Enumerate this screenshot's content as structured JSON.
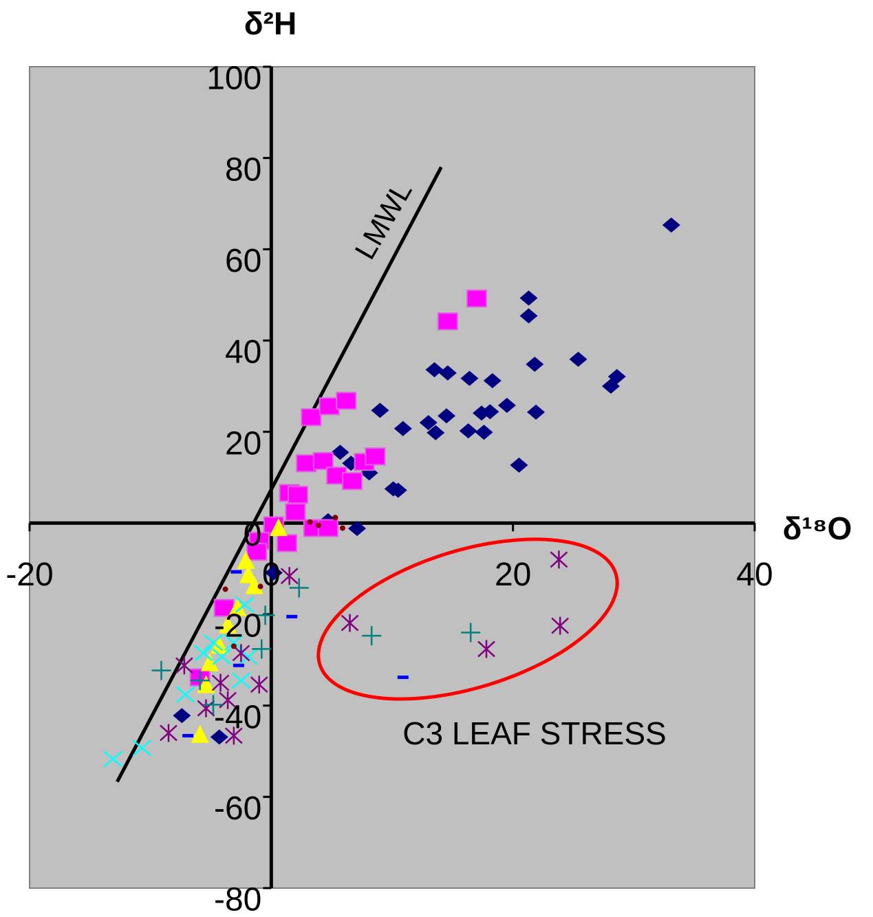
{
  "chart_data": {
    "type": "scatter",
    "xlabel": "δ¹⁸O",
    "ylabel": "δ²H",
    "xlim": [
      -20,
      40
    ],
    "ylim": [
      -80,
      100
    ],
    "xticks": [
      -20,
      0,
      20,
      40
    ],
    "yticks": [
      -80,
      -60,
      -40,
      -20,
      0,
      20,
      40,
      60,
      80,
      100
    ],
    "annotations": [
      "C3 LEAF STRESS"
    ],
    "lmwl": {
      "label": "LMWL",
      "x": [
        -12.75,
        14.06
      ],
      "y": [
        -56.7,
        78.0
      ]
    },
    "series": [
      {
        "color": "#000080",
        "marker": "diamond",
        "x": [
          33.1,
          21.3,
          21.3,
          13.5,
          14.6,
          16.4,
          18.3,
          21.8,
          25.4,
          28.6,
          28.1,
          9.0,
          10.9,
          13.0,
          14.5,
          13.6,
          16.3,
          17.6,
          17.4,
          18.1,
          19.5,
          21.9,
          20.5,
          5.7,
          6.6,
          8.1,
          10.1,
          10.5,
          4.7,
          7.1,
          0.2,
          -7.4,
          -4.3
        ],
        "y": [
          65.3,
          49.3,
          45.4,
          33.6,
          32.9,
          31.7,
          31.2,
          34.8,
          35.9,
          32.1,
          30.0,
          24.7,
          20.7,
          22.0,
          23.5,
          19.8,
          20.2,
          19.9,
          24.1,
          24.4,
          25.8,
          24.3,
          12.7,
          15.5,
          13.1,
          11.0,
          7.5,
          7.2,
          0.5,
          -1.2,
          -10.9,
          -42.2,
          -46.9
        ]
      },
      {
        "color": "#ff00ff",
        "marker": "square",
        "x": [
          17.0,
          14.6,
          3.3,
          4.8,
          6.2,
          2.9,
          4.3,
          5.4,
          6.7,
          7.7,
          8.6,
          1.5,
          2.2,
          2.0,
          0.2,
          3.5,
          4.7,
          1.3,
          -1.0,
          -1.2,
          -3.9,
          -5.9
        ],
        "y": [
          49.2,
          44.2,
          23.2,
          25.6,
          26.8,
          13.1,
          13.6,
          10.4,
          9.2,
          13.4,
          14.6,
          6.6,
          6.2,
          2.4,
          -0.5,
          -1.1,
          -1.1,
          -4.4,
          -3.9,
          -6.3,
          -18.6,
          -33.8
        ]
      },
      {
        "color": "#ffff00",
        "marker": "triangle",
        "x": [
          0.6,
          -2.1,
          -1.9,
          -1.4,
          -3.6,
          -4.3,
          -5.1,
          -5.4,
          -5.9,
          -2.8
        ],
        "y": [
          -1.2,
          -8.4,
          -11.5,
          -13.9,
          -22.5,
          -27.0,
          -30.8,
          -35.6,
          -46.5,
          -18.7
        ]
      },
      {
        "color": "#00ffff",
        "marker": "x",
        "x": [
          -13.1,
          -10.7,
          -7.1,
          -5.6,
          -4.8,
          -4.1,
          -3.1,
          -2.5,
          -2.2,
          -1.9
        ],
        "y": [
          -51.7,
          -49.3,
          -37.6,
          -28.5,
          -26.2,
          -29.3,
          -26.2,
          -34.5,
          -17.9,
          -29.3
        ]
      },
      {
        "color": "#800080",
        "marker": "asterisk",
        "x": [
          23.8,
          23.9,
          17.8,
          6.5,
          1.5,
          -8.5,
          -7.2,
          -5.4,
          -4.2,
          -3.1,
          -1.0,
          -3.6,
          -2.5
        ],
        "y": [
          -8.0,
          -22.5,
          -27.6,
          -21.9,
          -11.6,
          -46.0,
          -31.2,
          -40.6,
          -35.0,
          -46.6,
          -35.4,
          -38.8,
          -28.5
        ]
      },
      {
        "color": "#008080",
        "marker": "plus",
        "x": [
          -9.1,
          8.3,
          16.5,
          2.3,
          -0.8,
          -0.5,
          -4.8,
          -5.9
        ],
        "y": [
          -32.3,
          -24.7,
          -24.0,
          -14.2,
          -27.6,
          -20.2,
          -39.8,
          -34.5
        ]
      },
      {
        "color": "#0000ff",
        "marker": "dash",
        "x": [
          10.9,
          1.7,
          -2.7,
          -6.9,
          -2.9
        ],
        "y": [
          -33.8,
          -20.5,
          -31.2,
          -46.6,
          -10.7
        ]
      },
      {
        "color": "#800000",
        "marker": "dot",
        "x": [
          3.2,
          3.9,
          5.3,
          5.9,
          -3.8,
          -0.9,
          -3.1
        ],
        "y": [
          0.2,
          -0.5,
          1.2,
          -1.1,
          -14.5,
          -13.9,
          -27.0
        ]
      }
    ]
  }
}
